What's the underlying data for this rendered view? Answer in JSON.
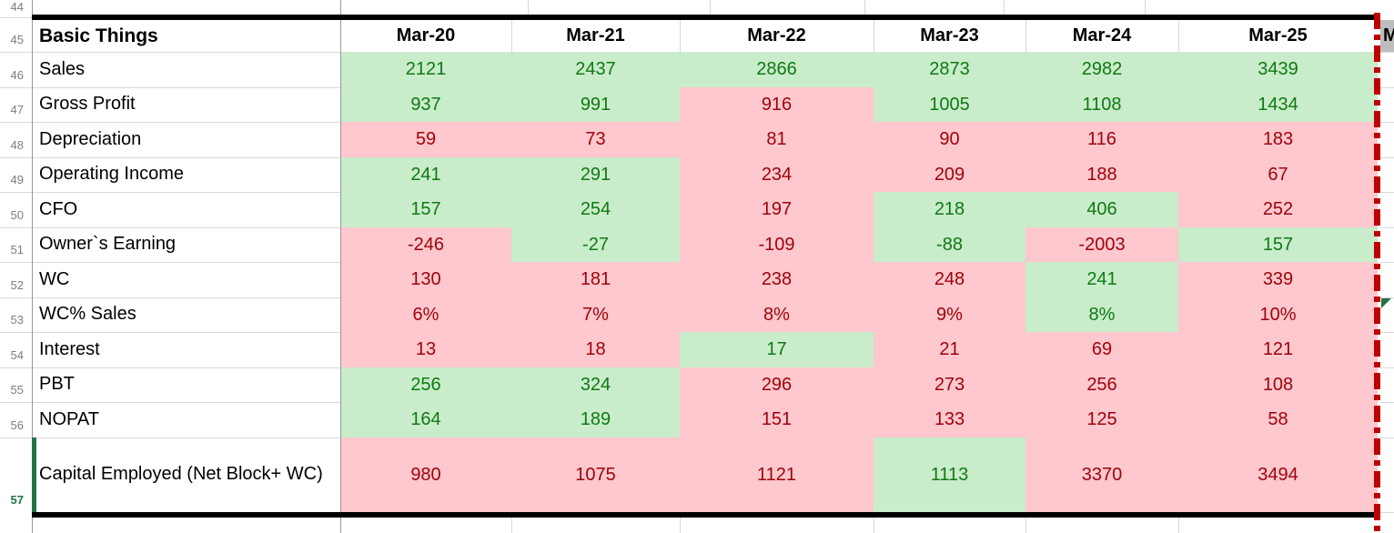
{
  "colors": {
    "good_bg": "#c9eccb",
    "good_text": "#0f7a12",
    "bad_bg": "#ffc7ce",
    "bad_text": "#9c030a",
    "accent_green": "#217346",
    "page_break_red": "#c00000",
    "next_header_bg": "#bdbdbd"
  },
  "rows_axis": {
    "top_partial_row": "44",
    "header_row": "45"
  },
  "table": {
    "title_cell": "Basic Things",
    "columns": [
      "Mar-20",
      "Mar-21",
      "Mar-22",
      "Mar-23",
      "Mar-24",
      "Mar-25"
    ],
    "next_column_partial_label": "M",
    "rows": [
      {
        "num": "46",
        "label": "Sales",
        "cells": [
          {
            "v": "2121",
            "s": "good"
          },
          {
            "v": "2437",
            "s": "good"
          },
          {
            "v": "2866",
            "s": "good"
          },
          {
            "v": "2873",
            "s": "good"
          },
          {
            "v": "2982",
            "s": "good"
          },
          {
            "v": "3439",
            "s": "good"
          }
        ]
      },
      {
        "num": "47",
        "label": "Gross Profit",
        "cells": [
          {
            "v": "937",
            "s": "good"
          },
          {
            "v": "991",
            "s": "good"
          },
          {
            "v": "916",
            "s": "bad"
          },
          {
            "v": "1005",
            "s": "good"
          },
          {
            "v": "1108",
            "s": "good"
          },
          {
            "v": "1434",
            "s": "good"
          }
        ]
      },
      {
        "num": "48",
        "label": "Depreciation",
        "cells": [
          {
            "v": "59",
            "s": "bad"
          },
          {
            "v": "73",
            "s": "bad"
          },
          {
            "v": "81",
            "s": "bad"
          },
          {
            "v": "90",
            "s": "bad"
          },
          {
            "v": "116",
            "s": "bad"
          },
          {
            "v": "183",
            "s": "bad"
          }
        ]
      },
      {
        "num": "49",
        "label": "Operating Income",
        "cells": [
          {
            "v": "241",
            "s": "good"
          },
          {
            "v": "291",
            "s": "good"
          },
          {
            "v": "234",
            "s": "bad"
          },
          {
            "v": "209",
            "s": "bad"
          },
          {
            "v": "188",
            "s": "bad"
          },
          {
            "v": "67",
            "s": "bad"
          }
        ]
      },
      {
        "num": "50",
        "label": "CFO",
        "cells": [
          {
            "v": "157",
            "s": "good"
          },
          {
            "v": "254",
            "s": "good"
          },
          {
            "v": "197",
            "s": "bad"
          },
          {
            "v": "218",
            "s": "good"
          },
          {
            "v": "406",
            "s": "good"
          },
          {
            "v": "252",
            "s": "bad"
          }
        ]
      },
      {
        "num": "51",
        "label": "Owner`s Earning",
        "cells": [
          {
            "v": "-246",
            "s": "bad"
          },
          {
            "v": "-27",
            "s": "good"
          },
          {
            "v": "-109",
            "s": "bad"
          },
          {
            "v": "-88",
            "s": "good"
          },
          {
            "v": "-2003",
            "s": "bad"
          },
          {
            "v": "157",
            "s": "good"
          }
        ]
      },
      {
        "num": "52",
        "label": "WC",
        "cells": [
          {
            "v": "130",
            "s": "bad"
          },
          {
            "v": "181",
            "s": "bad"
          },
          {
            "v": "238",
            "s": "bad"
          },
          {
            "v": "248",
            "s": "bad"
          },
          {
            "v": "241",
            "s": "good"
          },
          {
            "v": "339",
            "s": "bad"
          }
        ]
      },
      {
        "num": "53",
        "label": "WC% Sales",
        "cells": [
          {
            "v": "6%",
            "s": "bad"
          },
          {
            "v": "7%",
            "s": "bad"
          },
          {
            "v": "8%",
            "s": "bad"
          },
          {
            "v": "9%",
            "s": "bad"
          },
          {
            "v": "8%",
            "s": "good"
          },
          {
            "v": "10%",
            "s": "bad"
          }
        ]
      },
      {
        "num": "54",
        "label": "Interest",
        "cells": [
          {
            "v": "13",
            "s": "bad"
          },
          {
            "v": "18",
            "s": "bad"
          },
          {
            "v": "17",
            "s": "good"
          },
          {
            "v": "21",
            "s": "bad"
          },
          {
            "v": "69",
            "s": "bad"
          },
          {
            "v": "121",
            "s": "bad"
          }
        ]
      },
      {
        "num": "55",
        "label": "PBT",
        "cells": [
          {
            "v": "256",
            "s": "good"
          },
          {
            "v": "324",
            "s": "good"
          },
          {
            "v": "296",
            "s": "bad"
          },
          {
            "v": "273",
            "s": "bad"
          },
          {
            "v": "256",
            "s": "bad"
          },
          {
            "v": "108",
            "s": "bad"
          }
        ]
      },
      {
        "num": "56",
        "label": "NOPAT",
        "cells": [
          {
            "v": "164",
            "s": "good"
          },
          {
            "v": "189",
            "s": "good"
          },
          {
            "v": "151",
            "s": "bad"
          },
          {
            "v": "133",
            "s": "bad"
          },
          {
            "v": "125",
            "s": "bad"
          },
          {
            "v": "58",
            "s": "bad"
          }
        ]
      },
      {
        "num": "57",
        "label": "Capital Employed (Net Block+ WC)",
        "cells": [
          {
            "v": "980",
            "s": "bad"
          },
          {
            "v": "1075",
            "s": "bad"
          },
          {
            "v": "1121",
            "s": "bad"
          },
          {
            "v": "1113",
            "s": "good"
          },
          {
            "v": "3370",
            "s": "bad"
          },
          {
            "v": "3494",
            "s": "bad"
          }
        ]
      }
    ]
  }
}
